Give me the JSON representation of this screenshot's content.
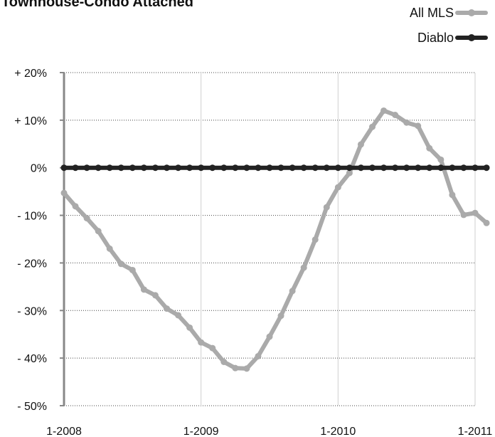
{
  "chart_data": {
    "type": "line",
    "title": "Townhouse-Condo Attached",
    "x": [
      "1-2008",
      "2-2008",
      "3-2008",
      "4-2008",
      "5-2008",
      "6-2008",
      "7-2008",
      "8-2008",
      "9-2008",
      "10-2008",
      "11-2008",
      "12-2008",
      "1-2009",
      "2-2009",
      "3-2009",
      "4-2009",
      "5-2009",
      "6-2009",
      "7-2009",
      "8-2009",
      "9-2009",
      "10-2009",
      "11-2009",
      "12-2009",
      "1-2010",
      "2-2010",
      "3-2010",
      "4-2010",
      "5-2010",
      "6-2010",
      "7-2010",
      "8-2010",
      "9-2010",
      "10-2010",
      "11-2010",
      "12-2010",
      "1-2011",
      "2-2011"
    ],
    "x_tick_labels": [
      "1-2008",
      "1-2009",
      "1-2010",
      "1-2011"
    ],
    "y_tick_labels": [
      "+ 20%",
      "+ 10%",
      "0%",
      "- 10%",
      "- 20%",
      "- 30%",
      "- 40%",
      "- 50%"
    ],
    "y_tick_values": [
      20,
      10,
      0,
      -10,
      -20,
      -30,
      -40,
      -50
    ],
    "ylim": [
      -50,
      20
    ],
    "grid": true,
    "legend_position": "top-right",
    "series": [
      {
        "name": "All MLS",
        "color": "#aaaaaa",
        "values": [
          -5.3,
          -8.1,
          -10.6,
          -13.3,
          -17.0,
          -20.2,
          -21.5,
          -25.6,
          -26.8,
          -29.6,
          -31.0,
          -33.6,
          -36.7,
          -37.9,
          -40.8,
          -42.1,
          -42.2,
          -39.6,
          -35.5,
          -31.1,
          -25.9,
          -21.0,
          -15.1,
          -8.3,
          -4.1,
          -1.1,
          4.9,
          8.6,
          12.0,
          11.1,
          9.5,
          8.8,
          4.1,
          1.7,
          -5.7,
          -9.9,
          -9.5,
          -11.6
        ]
      },
      {
        "name": "Diablo",
        "color": "#222222",
        "values": [
          0,
          0,
          0,
          0,
          0,
          0,
          0,
          0,
          0,
          0,
          0,
          0,
          0,
          0,
          0,
          0,
          0,
          0,
          0,
          0,
          0,
          0,
          0,
          0,
          0,
          0,
          0,
          0,
          0,
          0,
          0,
          0,
          0,
          0,
          0,
          0,
          0,
          0
        ]
      }
    ]
  }
}
